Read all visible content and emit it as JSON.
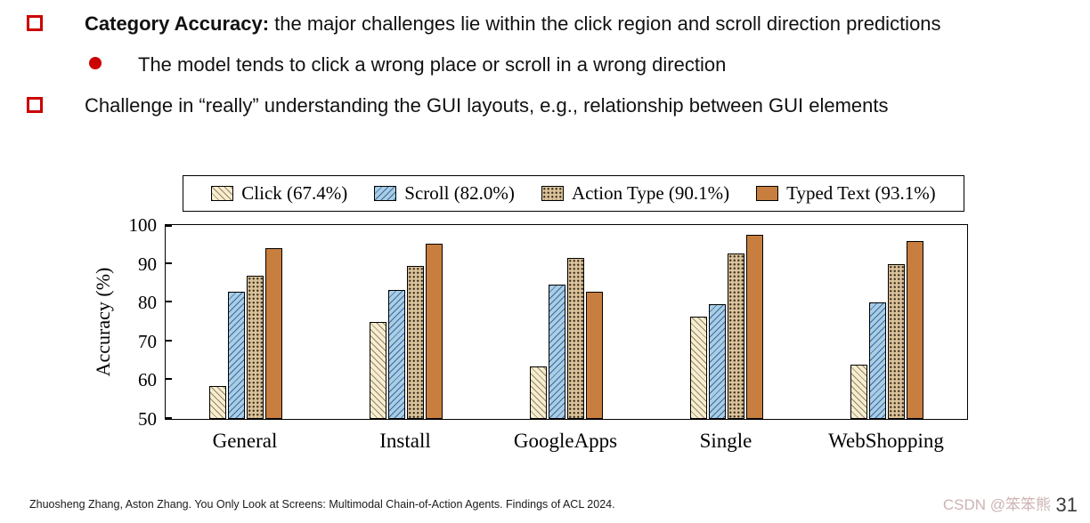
{
  "slide": {
    "bullets": [
      {
        "bold": "Category Accuracy:",
        "text": " the major challenges lie within the click region and scroll direction predictions"
      },
      {
        "text": "The model tends to click a wrong place or scroll in a wrong direction"
      },
      {
        "text": "Challenge in “really” understanding the GUI layouts, e.g., relationship between GUI elements"
      }
    ],
    "footer": "Zhuosheng Zhang, Aston Zhang. You Only Look at Screens: Multimodal Chain-of-Action Agents. Findings of ACL 2024.",
    "watermark": "CSDN @笨笨熊",
    "page_number": "31"
  },
  "chart_data": {
    "type": "bar",
    "categories": [
      "General",
      "Install",
      "GoogleApps",
      "Single",
      "WebShopping"
    ],
    "series": [
      {
        "name": "Click (67.4%)",
        "pattern": "diagonal-hatch",
        "color": "#f6edd2",
        "values": [
          58.4,
          75.0,
          63.5,
          76.3,
          64.1
        ]
      },
      {
        "name": "Scroll (82.0%)",
        "pattern": "back-diagonal-hatch",
        "color": "#a9cde5",
        "values": [
          82.7,
          83.2,
          84.6,
          79.6,
          80.0
        ]
      },
      {
        "name": "Action Type (90.1%)",
        "pattern": "dots",
        "color": "#d9c198",
        "values": [
          87.0,
          89.4,
          91.5,
          92.6,
          89.9
        ]
      },
      {
        "name": "Typed Text (93.1%)",
        "pattern": "solid",
        "color": "#c87e3e",
        "values": [
          94.0,
          95.3,
          82.7,
          97.5,
          95.8
        ]
      }
    ],
    "title": "",
    "xlabel": "",
    "ylabel": "Accuracy (%)",
    "ylim": [
      50,
      100
    ],
    "yticks": [
      50,
      60,
      70,
      80,
      90,
      100
    ],
    "legend_position": "top",
    "grid": false
  }
}
